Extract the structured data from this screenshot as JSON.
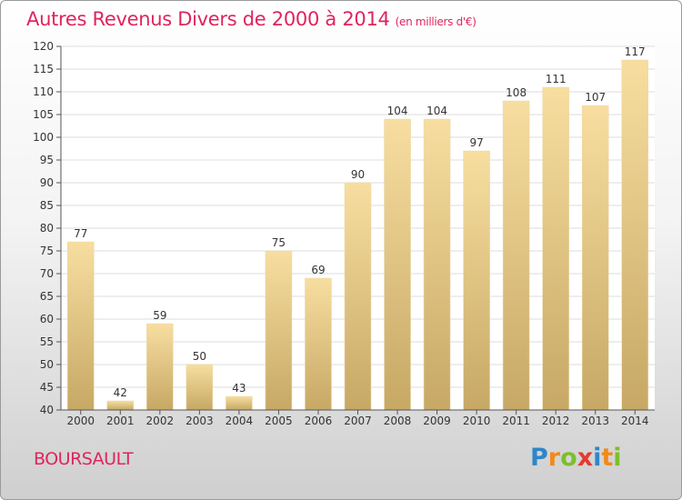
{
  "title": "Autres Revenus Divers de 2000 à 2014",
  "unit": "(en milliers d'€)",
  "town": "BOURSAULT",
  "logo": {
    "letters": [
      "P",
      "r",
      "o",
      "x",
      "i",
      "t",
      "i"
    ],
    "colors": [
      "#2f86c8",
      "#f08a1c",
      "#7cbf2e",
      "#e63a2f",
      "#2f86c8",
      "#f08a1c",
      "#7cbf2e"
    ]
  },
  "colors": {
    "bar_top": "#f7dea0",
    "bar_bottom": "#c7a865",
    "title": "#e0245e"
  },
  "chart_data": {
    "type": "bar",
    "categories": [
      "2000",
      "2001",
      "2002",
      "2003",
      "2004",
      "2005",
      "2006",
      "2007",
      "2008",
      "2009",
      "2010",
      "2011",
      "2012",
      "2013",
      "2014"
    ],
    "values": [
      77,
      42,
      59,
      50,
      43,
      75,
      69,
      90,
      104,
      104,
      97,
      108,
      111,
      107,
      117
    ],
    "ylim": [
      40,
      120
    ],
    "yticks": [
      40,
      45,
      50,
      55,
      60,
      65,
      70,
      75,
      80,
      85,
      90,
      95,
      100,
      105,
      110,
      115,
      120
    ],
    "grid": true
  }
}
